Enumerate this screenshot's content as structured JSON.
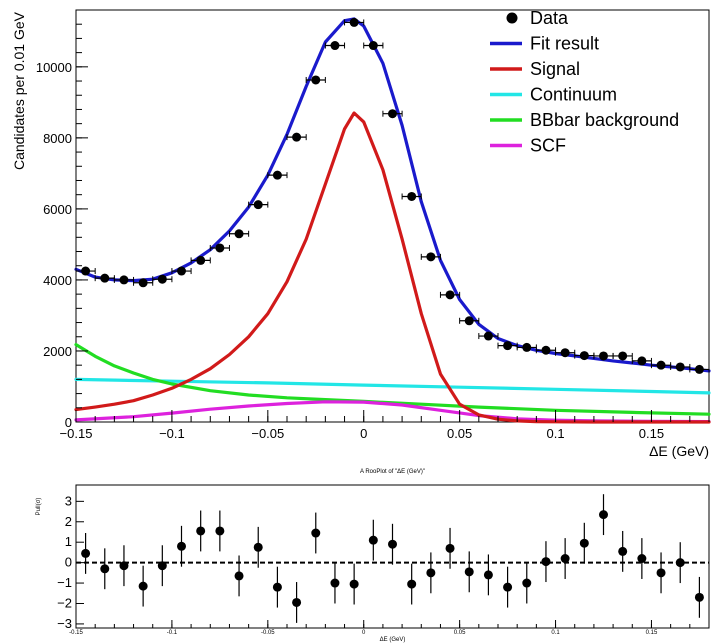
{
  "chart_data": [
    {
      "type": "line",
      "xlabel": "ΔE (GeV)",
      "ylabel": "Candidates per 0.01 GeV",
      "xlim": [
        -0.15,
        0.18
      ],
      "ylim": [
        0,
        11600
      ],
      "xticks": [
        -0.15,
        -0.1,
        -0.05,
        0,
        0.05,
        0.1,
        0.15
      ],
      "xtick_labels": [
        "−0.15",
        "−0.1",
        "−0.05",
        "0",
        "0.05",
        "0.1",
        "0.15"
      ],
      "yticks": [
        0,
        2000,
        4000,
        6000,
        8000,
        10000
      ],
      "ytick_labels": [
        "0",
        "2000",
        "4000",
        "6000",
        "8000",
        "10000"
      ],
      "legend_position": "top-right",
      "legend": [
        {
          "label": "Data",
          "color": "#000000",
          "marker": "point"
        },
        {
          "label": "Fit result",
          "color": "#1a1acc"
        },
        {
          "label": "Signal",
          "color": "#d11a1a"
        },
        {
          "label": "Continuum",
          "color": "#22e6e6"
        },
        {
          "label": "BBbar background",
          "color": "#22dd22"
        },
        {
          "label": "SCF",
          "color": "#dd22dd"
        }
      ],
      "data_points": {
        "x": [
          -0.145,
          -0.135,
          -0.125,
          -0.115,
          -0.105,
          -0.095,
          -0.085,
          -0.075,
          -0.065,
          -0.055,
          -0.045,
          -0.035,
          -0.025,
          -0.015,
          -0.005,
          0.005,
          0.015,
          0.025,
          0.035,
          0.045,
          0.055,
          0.065,
          0.075,
          0.085,
          0.095,
          0.105,
          0.115,
          0.125,
          0.135,
          0.145,
          0.155,
          0.165,
          0.175
        ],
        "y": [
          4250,
          4050,
          4000,
          3920,
          4020,
          4250,
          4550,
          4900,
          5300,
          6120,
          6950,
          8020,
          9630,
          10600,
          11250,
          10600,
          8680,
          6350,
          4650,
          3580,
          2850,
          2420,
          2150,
          2100,
          2020,
          1950,
          1870,
          1860,
          1860,
          1720,
          1600,
          1550,
          1480
        ]
      },
      "series": [
        {
          "name": "Fit result",
          "color": "#1a1acc",
          "x": [
            -0.15,
            -0.14,
            -0.13,
            -0.12,
            -0.11,
            -0.1,
            -0.09,
            -0.08,
            -0.07,
            -0.06,
            -0.05,
            -0.04,
            -0.03,
            -0.02,
            -0.01,
            -0.005,
            0,
            0.01,
            0.02,
            0.03,
            0.04,
            0.05,
            0.06,
            0.07,
            0.08,
            0.09,
            0.1,
            0.11,
            0.12,
            0.13,
            0.14,
            0.15,
            0.16,
            0.17,
            0.18
          ],
          "y": [
            4300,
            4080,
            4000,
            3980,
            4020,
            4200,
            4480,
            4850,
            5380,
            6050,
            6950,
            8100,
            9450,
            10700,
            11300,
            11350,
            11150,
            10100,
            8350,
            6200,
            4550,
            3450,
            2750,
            2350,
            2150,
            2020,
            1930,
            1860,
            1790,
            1720,
            1660,
            1600,
            1550,
            1500,
            1440
          ]
        },
        {
          "name": "Signal",
          "color": "#d11a1a",
          "x": [
            -0.15,
            -0.14,
            -0.13,
            -0.12,
            -0.11,
            -0.1,
            -0.09,
            -0.08,
            -0.07,
            -0.06,
            -0.05,
            -0.04,
            -0.03,
            -0.02,
            -0.01,
            -0.005,
            0,
            0.01,
            0.02,
            0.03,
            0.04,
            0.05,
            0.06,
            0.07,
            0.08,
            0.09,
            0.1,
            0.12,
            0.15,
            0.18
          ],
          "y": [
            350,
            420,
            500,
            600,
            760,
            950,
            1200,
            1500,
            1900,
            2400,
            3050,
            3950,
            5150,
            6700,
            8250,
            8700,
            8450,
            7100,
            5150,
            3050,
            1350,
            500,
            200,
            80,
            30,
            10,
            5,
            0,
            0,
            0
          ]
        },
        {
          "name": "Continuum",
          "color": "#22e6e6",
          "x": [
            -0.15,
            -0.1,
            -0.05,
            0,
            0.05,
            0.1,
            0.15,
            0.18
          ],
          "y": [
            1200,
            1150,
            1100,
            1040,
            980,
            920,
            860,
            820
          ]
        },
        {
          "name": "BBbar background",
          "color": "#22dd22",
          "x": [
            -0.15,
            -0.14,
            -0.13,
            -0.12,
            -0.11,
            -0.1,
            -0.08,
            -0.06,
            -0.04,
            -0.02,
            0,
            0.03,
            0.06,
            0.1,
            0.14,
            0.18
          ],
          "y": [
            2180,
            1850,
            1580,
            1380,
            1200,
            1070,
            880,
            760,
            680,
            630,
            580,
            500,
            420,
            330,
            270,
            220
          ]
        },
        {
          "name": "SCF",
          "color": "#dd22dd",
          "x": [
            -0.15,
            -0.12,
            -0.1,
            -0.08,
            -0.06,
            -0.04,
            -0.02,
            0,
            0.02,
            0.04,
            0.06,
            0.08,
            0.1,
            0.12,
            0.15,
            0.18
          ],
          "y": [
            60,
            150,
            250,
            360,
            450,
            520,
            570,
            560,
            480,
            330,
            180,
            90,
            50,
            30,
            20,
            10
          ]
        }
      ]
    },
    {
      "type": "scatter",
      "title": "A RooPlot of \"ΔE (GeV)\"",
      "xlabel": "ΔE (GeV)",
      "ylabel": "Pull(σ)",
      "xlim": [
        -0.15,
        0.18
      ],
      "ylim": [
        -3.2,
        3.8
      ],
      "xticks": [
        -0.15,
        -0.1,
        -0.05,
        0,
        0.05,
        0.1,
        0.15
      ],
      "xtick_labels": [
        "-0.15",
        "-0.1",
        "-0.05",
        "0",
        "0.05",
        "0.1",
        "0.15"
      ],
      "yticks": [
        -3,
        -2,
        -1,
        0,
        1,
        2,
        3
      ],
      "ytick_labels": [
        "−3",
        "−2",
        "−1",
        "0",
        "1",
        "2",
        "3"
      ],
      "data_points": {
        "x": [
          -0.145,
          -0.135,
          -0.125,
          -0.115,
          -0.105,
          -0.095,
          -0.085,
          -0.075,
          -0.065,
          -0.055,
          -0.045,
          -0.035,
          -0.025,
          -0.015,
          -0.005,
          0.005,
          0.015,
          0.025,
          0.035,
          0.045,
          0.055,
          0.065,
          0.075,
          0.085,
          0.095,
          0.105,
          0.115,
          0.125,
          0.135,
          0.145,
          0.155,
          0.165,
          0.175
        ],
        "y": [
          0.45,
          -0.3,
          -0.15,
          -1.15,
          -0.15,
          0.8,
          1.55,
          1.55,
          -0.65,
          0.75,
          -1.2,
          -1.95,
          1.45,
          -1.0,
          -1.05,
          1.1,
          0.9,
          -1.05,
          -0.5,
          0.7,
          -0.45,
          -0.6,
          -1.2,
          -1.0,
          0.05,
          0.2,
          0.95,
          2.35,
          0.55,
          0.2,
          -0.5,
          0.0,
          -1.7
        ]
      },
      "reference_line": {
        "y": 0,
        "style": "dashed"
      }
    }
  ]
}
